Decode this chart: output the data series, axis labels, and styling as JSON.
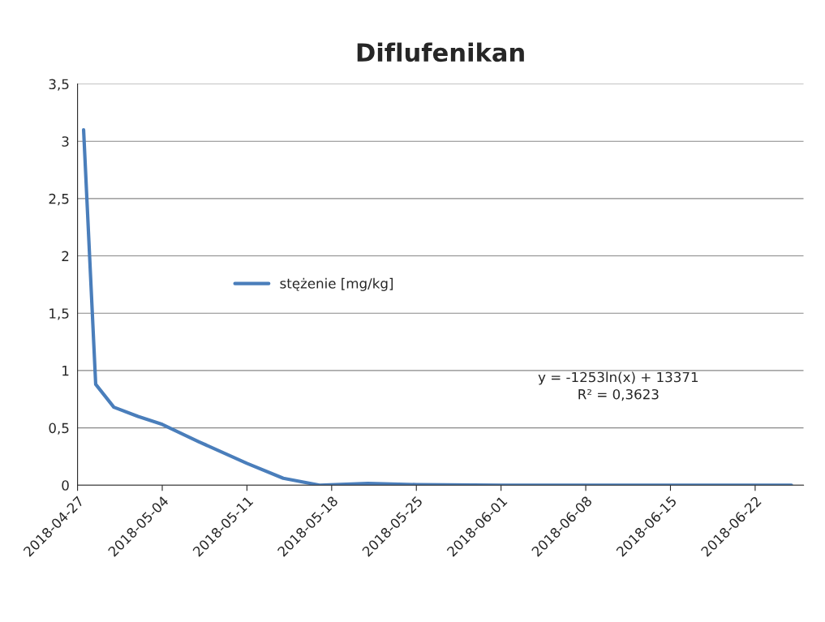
{
  "chart_data": {
    "type": "line",
    "title": "Diflufenikan",
    "x": [
      "2018-04-27T12:00",
      "2018-04-28T12:00",
      "2018-04-30",
      "2018-05-02",
      "2018-05-04",
      "2018-05-07",
      "2018-05-11",
      "2018-05-14",
      "2018-05-17",
      "2018-05-21",
      "2018-05-25",
      "2018-06-01",
      "2018-06-25"
    ],
    "series": [
      {
        "name": "stężenie [mg/kg]",
        "color": "#4a7ebb",
        "values": [
          3.1,
          0.88,
          0.68,
          0.6,
          0.53,
          0.38,
          0.19,
          0.06,
          0.0,
          0.015,
          0.005,
          0.0,
          0.0
        ]
      }
    ],
    "xlim": [
      "2018-04-27",
      "2018-06-26"
    ],
    "xticks": [
      {
        "value": "2018-04-27",
        "label": "2018-04-27"
      },
      {
        "value": "2018-05-04",
        "label": "2018-05-04"
      },
      {
        "value": "2018-05-11",
        "label": "2018-05-11"
      },
      {
        "value": "2018-05-18",
        "label": "2018-05-18"
      },
      {
        "value": "2018-05-25",
        "label": "2018-05-25"
      },
      {
        "value": "2018-06-01",
        "label": "2018-06-01"
      },
      {
        "value": "2018-06-08",
        "label": "2018-06-08"
      },
      {
        "value": "2018-06-15",
        "label": "2018-06-15"
      },
      {
        "value": "2018-06-22",
        "label": "2018-06-22"
      }
    ],
    "ylim": [
      0,
      3.5
    ],
    "yticks": [
      0,
      {
        "value": 0.5,
        "label": "0,5"
      },
      1,
      {
        "value": 1.5,
        "label": "1,5"
      },
      2,
      {
        "value": 2.5,
        "label": "2,5"
      },
      3,
      {
        "value": 3.5,
        "label": "3,5"
      }
    ],
    "annotations": [
      "y = -1253ln(x) + 13371\nR² = 0,3623"
    ],
    "grid": "y",
    "legend": "center left",
    "marker": "none",
    "line_style": "solid"
  }
}
